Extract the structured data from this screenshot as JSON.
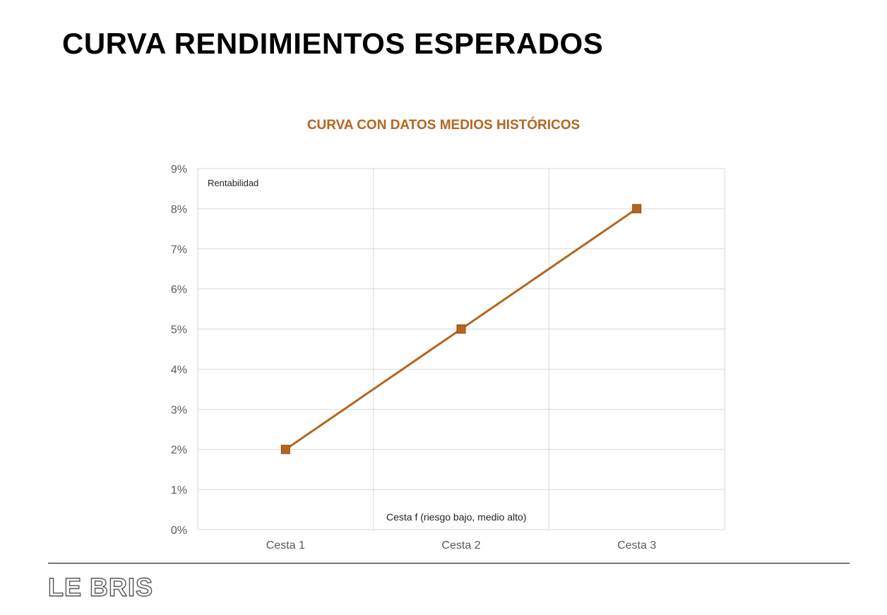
{
  "page": {
    "title": "CURVA RENDIMIENTOS ESPERADOS",
    "logo_text": "LE BRIS"
  },
  "chart_data": {
    "type": "line",
    "title": "CURVA CON DATOS MEDIOS HISTÓRICOS",
    "ylabel": "Rentabilidad",
    "xlabel": "Cesta f (riesgo bajo, medio alto)",
    "categories": [
      "Cesta 1",
      "Cesta 2",
      "Cesta 3"
    ],
    "series": [
      {
        "values": [
          2,
          5,
          8
        ],
        "color": "#b5651d",
        "marker": "square"
      }
    ],
    "ylim": [
      0,
      9
    ],
    "yticks": [
      0,
      1,
      2,
      3,
      4,
      5,
      6,
      7,
      8,
      9
    ],
    "ytick_suffix": "%",
    "grid": true,
    "legend": "none"
  }
}
